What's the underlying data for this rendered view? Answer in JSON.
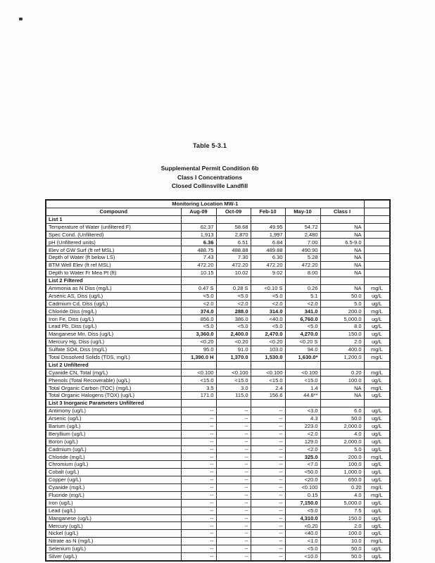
{
  "document": {
    "table_number": "Table 5-3.1",
    "subtitle": [
      "Supplemental Permit Condition 6b",
      "Class I Concentrations",
      "Closed Collinsville Landfill"
    ]
  },
  "table": {
    "location_header": "Monitoring Location MW-1",
    "columns": [
      "Compound",
      "Aug-09",
      "Oct-09",
      "Feb-10",
      "May-10",
      "Class I",
      ""
    ],
    "rows": [
      {
        "section": "List 1"
      },
      {
        "c": "Temperature of Water (unfiltered F)",
        "v": [
          "62.37",
          "58.68",
          "49.95",
          "54.72",
          "NA"
        ],
        "u": ""
      },
      {
        "c": "Spec Cond. (Unfiltered)",
        "v": [
          "1,913",
          "2,870",
          "1,997",
          "2,480",
          "NA"
        ],
        "u": ""
      },
      {
        "c": "pH (Unfiltered units)",
        "v": [
          "6.36",
          "6.51",
          "6.84",
          "7.00",
          "6.5-9.0"
        ],
        "u": "",
        "b": [
          0
        ]
      },
      {
        "c": "Elev of GW Surf (ft ref MSL)",
        "v": [
          "488.75",
          "488.88",
          "489.88",
          "490.90",
          "NA"
        ],
        "u": ""
      },
      {
        "c": "Depth of Water (ft below LS)",
        "v": [
          "7.43",
          "7.30",
          "6.30",
          "5.28",
          "NA"
        ],
        "u": ""
      },
      {
        "c": "BTM Well Elev (ft ref MSL)",
        "v": [
          "472.20",
          "472.20",
          "472.20",
          "472.20",
          "NA"
        ],
        "u": ""
      },
      {
        "c": "Depth to Water Fr Mea Pt (ft)",
        "v": [
          "10.15",
          "10.02",
          "9.02",
          "8.00",
          "NA"
        ],
        "u": ""
      },
      {
        "section": "List 2 Filtered"
      },
      {
        "c": "Ammonia as N Diss (mg/L)",
        "v": [
          "0.47 S",
          "0.28 S",
          "<0.10 S",
          "0.26",
          "NA"
        ],
        "u": "mg/L"
      },
      {
        "c": "Arsenic AS, Diss (ug/L)",
        "v": [
          "<5.0",
          "<5.0",
          "<5.0",
          "5.1",
          "50.0"
        ],
        "u": "ug/L"
      },
      {
        "c": "Cadmium Cd, Diss (ug/L)",
        "v": [
          "<2.0",
          "<2.0",
          "<2.0",
          "<2.0",
          "5.0"
        ],
        "u": "ug/L"
      },
      {
        "c": "Chloride Diss (mg/L)",
        "v": [
          "374.0",
          "288.0",
          "314.0",
          "341.0",
          "200.0"
        ],
        "u": "mg/L",
        "b": [
          0,
          1,
          2,
          3
        ]
      },
      {
        "c": "Iron Fe, Diss (ug/L)",
        "v": [
          "856.0",
          "386.0",
          "<40.0",
          "6,760.0",
          "5,000.0"
        ],
        "u": "ug/L",
        "b": [
          3
        ]
      },
      {
        "c": "Lead Pb, Diss (ug/L)",
        "v": [
          "<5.0",
          "<5.0",
          "<5.0",
          "<5.0",
          "8.0"
        ],
        "u": "ug/L"
      },
      {
        "c": "Manganese Mn, Diss (ug/L)",
        "v": [
          "3,360.0",
          "2,400.0",
          "2,470.0",
          "4,270.0",
          "150.0"
        ],
        "u": "ug/L",
        "b": [
          0,
          1,
          2,
          3
        ]
      },
      {
        "c": "Mercury Hg, Diss (ug/L)",
        "v": [
          "<0.20",
          "<0.20",
          "<0.20",
          "<0.20 S",
          "2.0"
        ],
        "u": "ug/L"
      },
      {
        "c": "Sulfate SO4, Diss (mg/L)",
        "v": [
          "95.0",
          "91.0",
          "103.0",
          "94.0",
          "400.0"
        ],
        "u": "mg/L"
      },
      {
        "c": "Total Dissolved Solids (TDS, mg/L)",
        "v": [
          "1,390.0 H",
          "1,370.0",
          "1,530.0",
          "1,630.0*",
          "1,200.0"
        ],
        "u": "mg/L",
        "b": [
          0,
          1,
          2,
          3
        ]
      },
      {
        "section": "List 2 Unfiltered"
      },
      {
        "c": "Cyanide CN, Total (mg/L)",
        "v": [
          "<0.100",
          "<0.100",
          "<0.100",
          "<0.100",
          "0.20"
        ],
        "u": "mg/L"
      },
      {
        "c": "Phenols (Total Recoverable) (ug/L)",
        "v": [
          "<15.0",
          "<15.0",
          "<15.0",
          "<15.0",
          "100.0"
        ],
        "u": "ug/L"
      },
      {
        "c": "Total Organic Carbon (TOC) (mg/L)",
        "v": [
          "3.5",
          "3.0",
          "2.4",
          "1.4",
          "NA"
        ],
        "u": "mg/L"
      },
      {
        "c": "Total Organic Halogens (TOX) (ug/L)",
        "v": [
          "171.0",
          "115.0",
          "156.6",
          "44.8**",
          "NA"
        ],
        "u": "ug/L"
      },
      {
        "section": "List 3 Inorganic Parameters Unfiltered"
      },
      {
        "c": "Antimony (ug/L)",
        "v": [
          "--",
          "--",
          "--",
          "<3.0",
          "6.0"
        ],
        "u": "ug/L"
      },
      {
        "c": "Arsenic (ug/L)",
        "v": [
          "--",
          "--",
          "--",
          "4.3",
          "50.0"
        ],
        "u": "ug/L"
      },
      {
        "c": "Barium (ug/L)",
        "v": [
          "--",
          "--",
          "--",
          "223.0",
          "2,000.0"
        ],
        "u": "ug/L"
      },
      {
        "c": "Beryllium (ug/L)",
        "v": [
          "--",
          "--",
          "--",
          "<2.0",
          "4.0"
        ],
        "u": "ug/L"
      },
      {
        "c": "Boron (ug/L)",
        "v": [
          "--",
          "--",
          "--",
          "129.0",
          "2,000.0"
        ],
        "u": "ug/L"
      },
      {
        "c": "Cadmium (ug/L)",
        "v": [
          "--",
          "--",
          "--",
          "<2.0",
          "5.0"
        ],
        "u": "ug/L"
      },
      {
        "c": "Chloride (mg/L)",
        "v": [
          "--",
          "--",
          "--",
          "325.0",
          "200.0"
        ],
        "u": "mg/L",
        "b": [
          3
        ]
      },
      {
        "c": "Chromium (ug/L)",
        "v": [
          "--",
          "--",
          "--",
          "<7.0",
          "100.0"
        ],
        "u": "ug/L"
      },
      {
        "c": "Cobalt (ug/L)",
        "v": [
          "--",
          "--",
          "--",
          "<50.0",
          "1,000.0"
        ],
        "u": "ug/L"
      },
      {
        "c": "Copper (ug/L)",
        "v": [
          "--",
          "--",
          "--",
          "<20.0",
          "650.0"
        ],
        "u": "ug/L"
      },
      {
        "c": "Cyanide (mg/L)",
        "v": [
          "--",
          "--",
          "--",
          "<0.100",
          "0.20"
        ],
        "u": "mg/L"
      },
      {
        "c": "Fluoride (mg/L)",
        "v": [
          "--",
          "--",
          "--",
          "0.15",
          "4.0"
        ],
        "u": "mg/L"
      },
      {
        "c": "Iron (ug/L)",
        "v": [
          "--",
          "--",
          "--",
          "7,150.0",
          "5,000.0"
        ],
        "u": "ug/L",
        "b": [
          3
        ]
      },
      {
        "c": "Lead (ug/L)",
        "v": [
          "--",
          "--",
          "--",
          "<5.0",
          "7.5"
        ],
        "u": "ug/L"
      },
      {
        "c": "Manganese (ug/L)",
        "v": [
          "--",
          "--",
          "--",
          "4,310.0",
          "150.0"
        ],
        "u": "ug/L",
        "b": [
          3
        ]
      },
      {
        "c": "Mercury (ug/L)",
        "v": [
          "--",
          "--",
          "--",
          "<0.20",
          "2.0"
        ],
        "u": "ug/L"
      },
      {
        "c": "Nickel (ug/L)",
        "v": [
          "--",
          "--",
          "--",
          "<40.0",
          "100.0"
        ],
        "u": "ug/L"
      },
      {
        "c": "Nitrate as N (mg/L)",
        "v": [
          "--",
          "--",
          "--",
          "<1.0",
          "10.0"
        ],
        "u": "mg/L"
      },
      {
        "c": "Selenium (ug/L)",
        "v": [
          "--",
          "--",
          "--",
          "<5.0",
          "50.0"
        ],
        "u": "ug/L"
      },
      {
        "c": "Silver (ug/L)",
        "v": [
          "--",
          "--",
          "--",
          "<10.0",
          "50.0"
        ],
        "u": "ug/L"
      }
    ]
  }
}
